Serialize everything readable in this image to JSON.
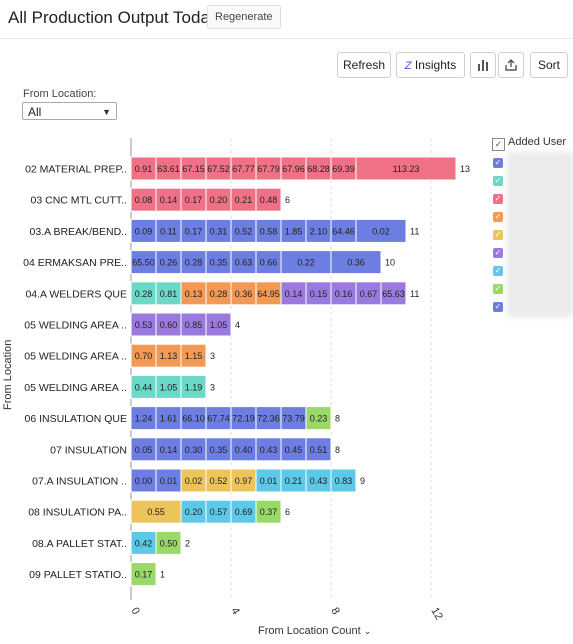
{
  "header": {
    "title": "All Production Output Today",
    "regenerate_label": "Regenerate"
  },
  "toolbar": {
    "refresh_label": "Refresh",
    "insights_label": "Insights",
    "sort_label": "Sort"
  },
  "filter": {
    "label": "From Location:",
    "value": "All"
  },
  "legend": {
    "title": "Added User"
  },
  "chart_data": {
    "type": "bar",
    "orientation": "horizontal",
    "stacked": true,
    "xlabel": "From Location Count",
    "ylabel": "From Location",
    "xlim": [
      0,
      12
    ],
    "xticks": [
      "0",
      "4",
      "8",
      "12"
    ],
    "grid": true,
    "legend_placement": "right",
    "colors": [
      "#f07186",
      "#6c7ee2",
      "#9b7ae0",
      "#f29a55",
      "#ecc45b",
      "#6bd8c8",
      "#5ec8e8",
      "#9ad86a"
    ],
    "categories": [
      "02 MATERIAL PREP..",
      "03 CNC MTL CUTT..",
      "03.A BREAK/BEND..",
      "04 ERMAKSAN PRE..",
      "04.A WELDERS QUE",
      "05 WELDING AREA ..",
      "05 WELDING AREA ..",
      "05 WELDING AREA ..",
      "06 INSULATION QUE",
      "07 INSULATION",
      "07.A INSULATION ..",
      "08 INSULATION PA..",
      "08.A PALLET STAT..",
      "09 PALLET STATIO.."
    ],
    "totals": [
      13,
      6,
      11,
      10,
      11,
      4,
      3,
      3,
      8,
      8,
      9,
      6,
      2,
      1
    ],
    "rows": [
      [
        {
          "c": 0,
          "n": 1,
          "l": "0.91"
        },
        {
          "c": 0,
          "n": 1,
          "l": "63.61"
        },
        {
          "c": 0,
          "n": 1,
          "l": "67.15"
        },
        {
          "c": 0,
          "n": 1,
          "l": "67.52"
        },
        {
          "c": 0,
          "n": 1,
          "l": "67.77"
        },
        {
          "c": 0,
          "n": 1,
          "l": "67.79"
        },
        {
          "c": 0,
          "n": 1,
          "l": "67.96"
        },
        {
          "c": 0,
          "n": 1,
          "l": "68.28"
        },
        {
          "c": 0,
          "n": 1,
          "l": "69.39"
        },
        {
          "c": 0,
          "n": 4,
          "l": "113.23"
        }
      ],
      [
        {
          "c": 0,
          "n": 1,
          "l": "0.08"
        },
        {
          "c": 0,
          "n": 1,
          "l": "0.14"
        },
        {
          "c": 0,
          "n": 1,
          "l": "0.17"
        },
        {
          "c": 0,
          "n": 1,
          "l": "0.20"
        },
        {
          "c": 0,
          "n": 1,
          "l": "0.21"
        },
        {
          "c": 0,
          "n": 1,
          "l": "0.48"
        }
      ],
      [
        {
          "c": 1,
          "n": 1,
          "l": "0.09"
        },
        {
          "c": 1,
          "n": 1,
          "l": "0.11"
        },
        {
          "c": 1,
          "n": 1,
          "l": "0.17"
        },
        {
          "c": 1,
          "n": 1,
          "l": "0.31"
        },
        {
          "c": 1,
          "n": 1,
          "l": "0.52"
        },
        {
          "c": 1,
          "n": 1,
          "l": "0.58"
        },
        {
          "c": 1,
          "n": 1,
          "l": "1.85"
        },
        {
          "c": 1,
          "n": 1,
          "l": "2.10"
        },
        {
          "c": 1,
          "n": 1,
          "l": "64.46"
        },
        {
          "c": 1,
          "n": 2,
          "l": "0.02"
        }
      ],
      [
        {
          "c": 1,
          "n": 1,
          "l": "65.50"
        },
        {
          "c": 1,
          "n": 1,
          "l": "0.26"
        },
        {
          "c": 1,
          "n": 1,
          "l": "0.28"
        },
        {
          "c": 1,
          "n": 1,
          "l": "0.35"
        },
        {
          "c": 1,
          "n": 1,
          "l": "0.63"
        },
        {
          "c": 1,
          "n": 1,
          "l": "0.66"
        },
        {
          "c": 1,
          "n": 2,
          "l": "0.22"
        },
        {
          "c": 1,
          "n": 2,
          "l": "0.36"
        }
      ],
      [
        {
          "c": 5,
          "n": 1,
          "l": "0.28"
        },
        {
          "c": 5,
          "n": 1,
          "l": "0.81"
        },
        {
          "c": 3,
          "n": 1,
          "l": "0.13"
        },
        {
          "c": 3,
          "n": 1,
          "l": "0.28"
        },
        {
          "c": 3,
          "n": 1,
          "l": "0.36"
        },
        {
          "c": 3,
          "n": 1,
          "l": "64.95"
        },
        {
          "c": 2,
          "n": 1,
          "l": "0.14"
        },
        {
          "c": 2,
          "n": 1,
          "l": "0.15"
        },
        {
          "c": 2,
          "n": 1,
          "l": "0.16"
        },
        {
          "c": 2,
          "n": 1,
          "l": "0.67"
        },
        {
          "c": 2,
          "n": 1,
          "l": "65.63"
        }
      ],
      [
        {
          "c": 2,
          "n": 1,
          "l": "0.53"
        },
        {
          "c": 2,
          "n": 1,
          "l": "0.60"
        },
        {
          "c": 2,
          "n": 1,
          "l": "0.85"
        },
        {
          "c": 2,
          "n": 1,
          "l": "1.05"
        }
      ],
      [
        {
          "c": 3,
          "n": 1,
          "l": "0.70"
        },
        {
          "c": 3,
          "n": 1,
          "l": "1.13"
        },
        {
          "c": 3,
          "n": 1,
          "l": "1.15"
        }
      ],
      [
        {
          "c": 5,
          "n": 1,
          "l": "0.44"
        },
        {
          "c": 5,
          "n": 1,
          "l": "1.05"
        },
        {
          "c": 5,
          "n": 1,
          "l": "1.19"
        }
      ],
      [
        {
          "c": 1,
          "n": 1,
          "l": "1.24"
        },
        {
          "c": 1,
          "n": 1,
          "l": "1.61"
        },
        {
          "c": 1,
          "n": 1,
          "l": "66.10"
        },
        {
          "c": 1,
          "n": 1,
          "l": "67.74"
        },
        {
          "c": 1,
          "n": 1,
          "l": "72.19"
        },
        {
          "c": 1,
          "n": 1,
          "l": "72.36"
        },
        {
          "c": 1,
          "n": 1,
          "l": "73.79"
        },
        {
          "c": 7,
          "n": 1,
          "l": "0.23"
        }
      ],
      [
        {
          "c": 1,
          "n": 1,
          "l": "0.05"
        },
        {
          "c": 1,
          "n": 1,
          "l": "0.14"
        },
        {
          "c": 1,
          "n": 1,
          "l": "0.30"
        },
        {
          "c": 1,
          "n": 1,
          "l": "0.35"
        },
        {
          "c": 1,
          "n": 1,
          "l": "0.40"
        },
        {
          "c": 1,
          "n": 1,
          "l": "0.43"
        },
        {
          "c": 1,
          "n": 1,
          "l": "0.45"
        },
        {
          "c": 1,
          "n": 1,
          "l": "0.51"
        }
      ],
      [
        {
          "c": 1,
          "n": 1,
          "l": "0.00"
        },
        {
          "c": 1,
          "n": 1,
          "l": "0.01"
        },
        {
          "c": 4,
          "n": 1,
          "l": "0.02"
        },
        {
          "c": 4,
          "n": 1,
          "l": "0.52"
        },
        {
          "c": 4,
          "n": 1,
          "l": "0.97"
        },
        {
          "c": 6,
          "n": 1,
          "l": "0.01"
        },
        {
          "c": 6,
          "n": 1,
          "l": "0.21"
        },
        {
          "c": 6,
          "n": 1,
          "l": "0.43"
        },
        {
          "c": 6,
          "n": 1,
          "l": "0.83"
        }
      ],
      [
        {
          "c": 4,
          "n": 2,
          "l": "0.55"
        },
        {
          "c": 6,
          "n": 1,
          "l": "0.20"
        },
        {
          "c": 6,
          "n": 1,
          "l": "0.57"
        },
        {
          "c": 6,
          "n": 1,
          "l": "0.69"
        },
        {
          "c": 7,
          "n": 1,
          "l": "0.37"
        }
      ],
      [
        {
          "c": 6,
          "n": 1,
          "l": "0.42"
        },
        {
          "c": 7,
          "n": 1,
          "l": "0.50"
        }
      ],
      [
        {
          "c": 7,
          "n": 1,
          "l": "0.17"
        }
      ]
    ]
  }
}
